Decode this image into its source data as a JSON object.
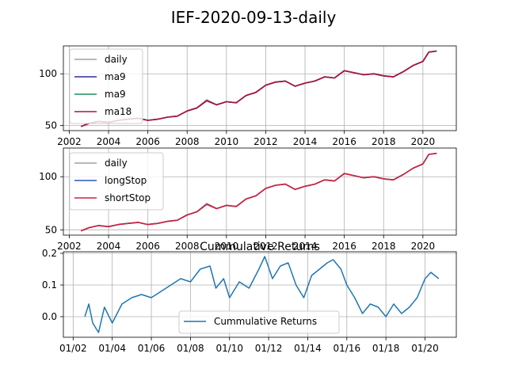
{
  "figure": {
    "title": "IEF-2020-09-13-daily"
  },
  "chart_data": [
    {
      "type": "line",
      "title": "",
      "xlabel": "",
      "ylabel": "",
      "xlim": [
        2001.7,
        2021.7
      ],
      "ylim": [
        45,
        127
      ],
      "x_ticks": [
        2002,
        2004,
        2006,
        2008,
        2010,
        2012,
        2014,
        2016,
        2018,
        2020
      ],
      "x_tick_labels": [
        "2002",
        "2004",
        "2006",
        "2008",
        "2010",
        "2012",
        "2014",
        "2016",
        "2018",
        "2020"
      ],
      "y_ticks": [
        50,
        100
      ],
      "y_tick_labels": [
        "50",
        "100"
      ],
      "grid": true,
      "legend_position": "upper-left",
      "x": [
        2002.6,
        2003.0,
        2003.5,
        2004.0,
        2004.5,
        2005.0,
        2005.5,
        2006.0,
        2006.5,
        2007.0,
        2007.5,
        2008.0,
        2008.5,
        2009.0,
        2009.5,
        2010.0,
        2010.5,
        2011.0,
        2011.5,
        2012.0,
        2012.5,
        2013.0,
        2013.5,
        2014.0,
        2014.5,
        2015.0,
        2015.5,
        2016.0,
        2016.5,
        2017.0,
        2017.5,
        2018.0,
        2018.5,
        2019.0,
        2019.5,
        2020.0,
        2020.3,
        2020.7
      ],
      "series": [
        {
          "name": "daily",
          "color": "#a0a0a0",
          "values": [
            49,
            52,
            54,
            53,
            55,
            56,
            57,
            55,
            56,
            58,
            59,
            64,
            67,
            75,
            70,
            73,
            72,
            79,
            82,
            89,
            92,
            93,
            88,
            91,
            93,
            97,
            96,
            103,
            101,
            99,
            100,
            98,
            97,
            102,
            108,
            112,
            121,
            122
          ]
        },
        {
          "name": "ma9",
          "color": "#2b2b9a",
          "values": [
            49,
            52,
            54,
            53,
            55,
            56,
            57,
            55,
            56,
            58,
            59,
            64,
            67,
            74,
            70,
            73,
            72,
            79,
            82,
            89,
            92,
            93,
            88,
            91,
            93,
            97,
            96,
            103,
            101,
            99,
            100,
            98,
            97,
            102,
            108,
            112,
            121,
            122
          ]
        },
        {
          "name": "ma9",
          "color": "#1f8f5f",
          "values": [
            49,
            52,
            54,
            53,
            55,
            56,
            57,
            55,
            56,
            58,
            59,
            64,
            67,
            74,
            70,
            73,
            72,
            79,
            82,
            89,
            92,
            93,
            88,
            91,
            93,
            97,
            96,
            103,
            101,
            99,
            100,
            98,
            97,
            102,
            108,
            112,
            121,
            122
          ]
        },
        {
          "name": "ma18",
          "color": "#b0103c",
          "values": [
            49,
            52,
            54,
            53,
            55,
            56,
            57,
            55,
            56,
            58,
            59,
            64,
            67,
            74,
            70,
            73,
            72,
            79,
            82,
            89,
            92,
            93,
            88,
            91,
            93,
            97,
            96,
            103,
            101,
            99,
            100,
            98,
            97,
            102,
            108,
            112,
            121,
            122
          ]
        }
      ]
    },
    {
      "type": "line",
      "title": "",
      "xlabel": "",
      "ylabel": "",
      "xlim": [
        2001.7,
        2021.7
      ],
      "ylim": [
        45,
        127
      ],
      "x_ticks": [
        2002,
        2004,
        2006,
        2008,
        2010,
        2012,
        2014,
        2016,
        2018,
        2020
      ],
      "x_tick_labels": [
        "2002",
        "2004",
        "2006",
        "2008",
        "2010",
        "2012",
        "2014",
        "2016",
        "2018",
        "2020"
      ],
      "y_ticks": [
        50,
        100
      ],
      "y_tick_labels": [
        "50",
        "100"
      ],
      "grid": true,
      "legend_position": "upper-left",
      "x": [
        2002.6,
        2003.0,
        2003.5,
        2004.0,
        2004.5,
        2005.0,
        2005.5,
        2006.0,
        2006.5,
        2007.0,
        2007.5,
        2008.0,
        2008.5,
        2009.0,
        2009.5,
        2010.0,
        2010.5,
        2011.0,
        2011.5,
        2012.0,
        2012.5,
        2013.0,
        2013.5,
        2014.0,
        2014.5,
        2015.0,
        2015.5,
        2016.0,
        2016.5,
        2017.0,
        2017.5,
        2018.0,
        2018.5,
        2019.0,
        2019.5,
        2020.0,
        2020.3,
        2020.7
      ],
      "series": [
        {
          "name": "daily",
          "color": "#a0a0a0",
          "values": [
            49,
            52,
            54,
            53,
            55,
            56,
            57,
            55,
            56,
            58,
            59,
            64,
            67,
            75,
            70,
            73,
            72,
            79,
            82,
            89,
            92,
            93,
            88,
            91,
            93,
            97,
            96,
            103,
            101,
            99,
            100,
            98,
            97,
            102,
            108,
            112,
            121,
            122
          ]
        },
        {
          "name": "longStop",
          "color": "#2a56b8",
          "values": [
            49,
            52,
            54,
            53,
            55,
            56,
            57,
            55,
            56,
            58,
            59,
            64,
            67,
            74,
            70,
            73,
            72,
            79,
            82,
            89,
            92,
            93,
            88,
            91,
            93,
            97,
            96,
            103,
            101,
            99,
            100,
            98,
            97,
            102,
            108,
            112,
            121,
            122
          ]
        },
        {
          "name": "shortStop",
          "color": "#d0203c",
          "values": [
            49,
            52,
            54,
            53,
            55,
            56,
            57,
            55,
            56,
            58,
            59,
            64,
            67,
            74,
            70,
            73,
            72,
            79,
            82,
            89,
            92,
            93,
            88,
            91,
            93,
            97,
            96,
            103,
            101,
            99,
            100,
            98,
            97,
            102,
            108,
            112,
            121,
            122
          ]
        }
      ]
    },
    {
      "type": "line",
      "title": "Cummulative Returns",
      "xlabel": "",
      "ylabel": "",
      "xlim": [
        2001.5,
        2021.6
      ],
      "ylim": [
        -0.065,
        0.205
      ],
      "x_ticks": [
        2002,
        2004,
        2006,
        2008,
        2010,
        2012,
        2014,
        2016,
        2018,
        2020
      ],
      "x_tick_labels": [
        "01/02",
        "01/04",
        "01/06",
        "01/08",
        "01/10",
        "01/12",
        "01/14",
        "01/16",
        "01/18",
        "01/20"
      ],
      "y_ticks": [
        0.0,
        0.1,
        0.2
      ],
      "y_tick_labels": [
        "0.0",
        "0.1",
        "0.2"
      ],
      "grid": true,
      "legend_position": "lower-center",
      "x": [
        2002.6,
        2002.8,
        2003.0,
        2003.3,
        2003.6,
        2004.0,
        2004.5,
        2005.0,
        2005.5,
        2006.0,
        2006.5,
        2007.0,
        2007.5,
        2008.0,
        2008.5,
        2009.0,
        2009.3,
        2009.7,
        2010.0,
        2010.5,
        2011.0,
        2011.5,
        2011.8,
        2012.2,
        2012.6,
        2013.0,
        2013.4,
        2013.8,
        2014.2,
        2014.6,
        2015.0,
        2015.3,
        2015.7,
        2016.0,
        2016.4,
        2016.8,
        2017.2,
        2017.6,
        2018.0,
        2018.4,
        2018.8,
        2019.2,
        2019.6,
        2020.0,
        2020.3,
        2020.7
      ],
      "series": [
        {
          "name": "Cummulative Returns",
          "color": "#1f77b4",
          "values": [
            0.0,
            0.04,
            -0.02,
            -0.05,
            0.03,
            -0.02,
            0.04,
            0.06,
            0.07,
            0.06,
            0.08,
            0.1,
            0.12,
            0.11,
            0.15,
            0.16,
            0.09,
            0.12,
            0.06,
            0.11,
            0.09,
            0.15,
            0.19,
            0.12,
            0.16,
            0.17,
            0.1,
            0.06,
            0.13,
            0.15,
            0.17,
            0.18,
            0.15,
            0.1,
            0.06,
            0.01,
            0.04,
            0.03,
            0.0,
            0.04,
            0.01,
            0.03,
            0.06,
            0.12,
            0.14,
            0.12
          ]
        }
      ]
    }
  ]
}
